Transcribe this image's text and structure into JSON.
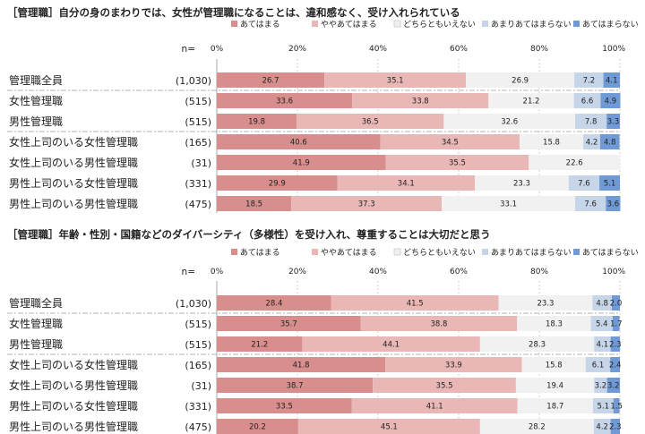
{
  "colors": {
    "s1": "#d88e8c",
    "s2": "#e9b8b6",
    "s3": "#f1f1f1",
    "s4": "#c6d5e8",
    "s5": "#6f9ad6",
    "grid": "#c8c8c8",
    "separator": "#9a9a9a",
    "text": "#222222"
  },
  "n_label": "n=",
  "chart_data": [
    {
      "type": "bar",
      "orientation": "horizontal-stacked-100",
      "title": "［管理職］自分の身のまわりでは、女性が管理職になることは、違和感なく、受け入れられている",
      "series_names": [
        "あてはまる",
        "ややあてはまる",
        "どちらともいえない",
        "あまりあてはまらない",
        "あてはまらない"
      ],
      "x_ticks": [
        "0%",
        "20%",
        "40%",
        "60%",
        "80%",
        "100%"
      ],
      "xlim": [
        0,
        100
      ],
      "categories": [
        "管理職全員",
        "女性管理職",
        "男性管理職",
        "女性上司のいる女性管理職",
        "女性上司のいる男性管理職",
        "男性上司のいる女性管理職",
        "男性上司のいる男性管理職"
      ],
      "n": [
        "(1,030)",
        "(515)",
        "(515)",
        "(165)",
        "(31)",
        "(331)",
        "(475)"
      ],
      "values": [
        [
          26.7,
          35.1,
          26.9,
          7.2,
          4.1
        ],
        [
          33.6,
          33.8,
          21.2,
          6.6,
          4.9
        ],
        [
          19.8,
          36.5,
          32.6,
          7.8,
          3.3
        ],
        [
          40.6,
          34.5,
          15.8,
          4.2,
          4.8
        ],
        [
          41.9,
          35.5,
          22.6,
          0,
          0
        ],
        [
          29.9,
          34.1,
          23.3,
          7.6,
          5.1
        ],
        [
          18.5,
          37.3,
          33.1,
          7.6,
          3.6
        ]
      ],
      "labels": [
        [
          "26.7",
          "35.1",
          "26.9",
          "7.2",
          "4.1"
        ],
        [
          "33.6",
          "33.8",
          "21.2",
          "6.6",
          "4.9"
        ],
        [
          "19.8",
          "36.5",
          "32.6",
          "7.8",
          "3.3"
        ],
        [
          "40.6",
          "34.5",
          "15.8",
          "4.2",
          "4.8"
        ],
        [
          "41.9",
          "35.5",
          "22.6",
          "",
          ""
        ],
        [
          "29.9",
          "34.1",
          "23.3",
          "7.6",
          "5.1"
        ],
        [
          "18.5",
          "37.3",
          "33.1",
          "7.6",
          "3.6"
        ]
      ],
      "group_separators_after": [
        0,
        2
      ]
    },
    {
      "type": "bar",
      "orientation": "horizontal-stacked-100",
      "title": "［管理職］年齢・性別・国籍などのダイバーシティ（多様性）を受け入れ、尊重することは大切だと思う",
      "series_names": [
        "あてはまる",
        "ややあてはまる",
        "どちらともいえない",
        "あまりあてはまらない",
        "あてはまらない"
      ],
      "x_ticks": [
        "0%",
        "20%",
        "40%",
        "60%",
        "80%",
        "100%"
      ],
      "xlim": [
        0,
        100
      ],
      "categories": [
        "管理職全員",
        "女性管理職",
        "男性管理職",
        "女性上司のいる女性管理職",
        "女性上司のいる男性管理職",
        "男性上司のいる女性管理職",
        "男性上司のいる男性管理職"
      ],
      "n": [
        "(1,030)",
        "(515)",
        "(515)",
        "(165)",
        "(31)",
        "(331)",
        "(475)"
      ],
      "values": [
        [
          28.4,
          41.5,
          23.3,
          4.8,
          2.0
        ],
        [
          35.7,
          38.8,
          18.3,
          5.4,
          1.7
        ],
        [
          21.2,
          44.1,
          28.3,
          4.1,
          2.3
        ],
        [
          41.8,
          33.9,
          15.8,
          6.1,
          2.4
        ],
        [
          38.7,
          35.5,
          19.4,
          3.2,
          3.2
        ],
        [
          33.5,
          41.1,
          18.7,
          5.1,
          1.5
        ],
        [
          20.2,
          45.1,
          28.2,
          4.2,
          2.3
        ]
      ],
      "labels": [
        [
          "28.4",
          "41.5",
          "23.3",
          "4.8",
          "2.0"
        ],
        [
          "35.7",
          "38.8",
          "18.3",
          "5.4",
          "1.7"
        ],
        [
          "21.2",
          "44.1",
          "28.3",
          "4.1",
          "2.3"
        ],
        [
          "41.8",
          "33.9",
          "15.8",
          "6.1",
          "2.4"
        ],
        [
          "38.7",
          "35.5",
          "19.4",
          "3.2",
          "3.2"
        ],
        [
          "33.5",
          "41.1",
          "18.7",
          "5.1",
          "1.5"
        ],
        [
          "20.2",
          "45.1",
          "28.2",
          "4.2",
          "2.3"
        ]
      ],
      "group_separators_after": [
        0,
        2
      ]
    }
  ]
}
